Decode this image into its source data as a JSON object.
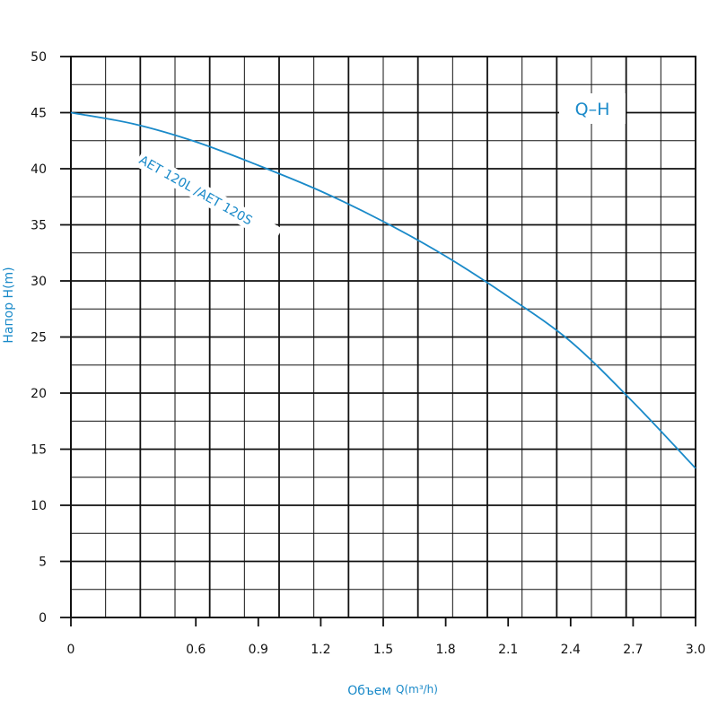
{
  "chart_data": {
    "type": "line",
    "title": "",
    "badge": "Q–H",
    "xlabel": "Объем",
    "xlabel_unit": "Q(m³/h)",
    "ylabel": "Напор H(m)",
    "xlim": [
      0,
      3.0
    ],
    "ylim": [
      0,
      50
    ],
    "x_tick_labels": [
      "0",
      "0.6",
      "0.9",
      "1.2",
      "1.5",
      "1.8",
      "2.1",
      "2.4",
      "2.7",
      "3.0"
    ],
    "y_tick_labels": [
      "0",
      "5",
      "10",
      "15",
      "20",
      "25",
      "30",
      "35",
      "40",
      "45",
      "50"
    ],
    "grid": true,
    "colors": {
      "series": "#1a8ac9",
      "grid": "#111111",
      "axis": "#111111"
    },
    "series": [
      {
        "name": "AET 120L /AET 120S",
        "x": [
          0,
          0.3,
          0.6,
          0.9,
          1.2,
          1.5,
          1.8,
          2.1,
          2.4,
          2.7,
          3.0
        ],
        "y": [
          45,
          44.0,
          42.4,
          40.3,
          38.0,
          35.3,
          32.2,
          28.6,
          24.6,
          19.2,
          13.3
        ]
      }
    ]
  }
}
